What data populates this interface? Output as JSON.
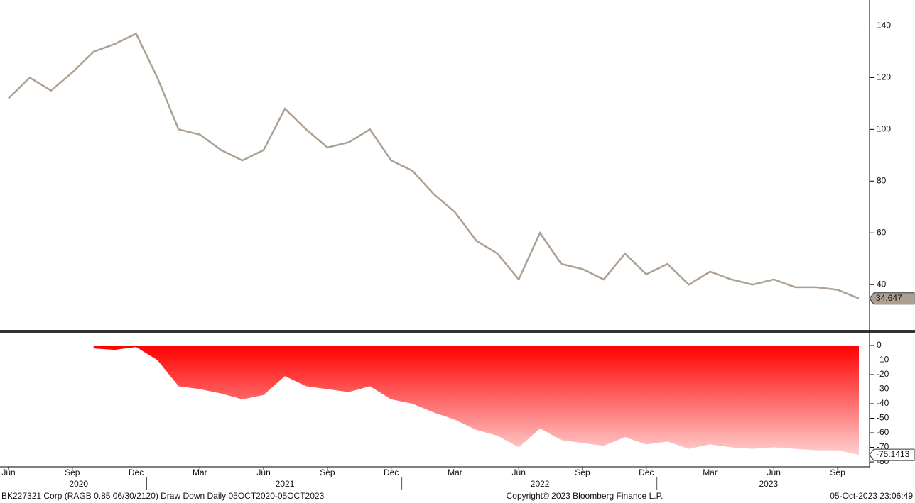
{
  "chart_data": [
    {
      "type": "line",
      "x": [
        "2020-06",
        "2020-07",
        "2020-08",
        "2020-09",
        "2020-10",
        "2020-11",
        "2020-12",
        "2021-01",
        "2021-02",
        "2021-03",
        "2021-04",
        "2021-05",
        "2021-06",
        "2021-07",
        "2021-08",
        "2021-09",
        "2021-10",
        "2021-11",
        "2021-12",
        "2022-01",
        "2022-02",
        "2022-03",
        "2022-04",
        "2022-05",
        "2022-06",
        "2022-07",
        "2022-08",
        "2022-09",
        "2022-10",
        "2022-11",
        "2022-12",
        "2023-01",
        "2023-02",
        "2023-03",
        "2023-04",
        "2023-05",
        "2023-06",
        "2023-07",
        "2023-08",
        "2023-09",
        "2023-10"
      ],
      "series": [
        {
          "color": "#ada092",
          "values": [
            112,
            120,
            115,
            122,
            130,
            133,
            137,
            120,
            100,
            98,
            92,
            88,
            92,
            108,
            100,
            93,
            95,
            100,
            88,
            84,
            75,
            68,
            57,
            52,
            42,
            60,
            48,
            46,
            42,
            52,
            44,
            48,
            40,
            45,
            42,
            40,
            42,
            39,
            39,
            38,
            34.647
          ]
        }
      ],
      "xlim": [
        "2020-06",
        "2023-10"
      ],
      "ylim": [
        22.5,
        150
      ],
      "yticks": [
        40,
        60,
        80,
        100,
        120,
        140
      ]
    },
    {
      "type": "area",
      "x": [
        "2020-06",
        "2020-07",
        "2020-08",
        "2020-09",
        "2020-10",
        "2020-11",
        "2020-12",
        "2021-01",
        "2021-02",
        "2021-03",
        "2021-04",
        "2021-05",
        "2021-06",
        "2021-07",
        "2021-08",
        "2021-09",
        "2021-10",
        "2021-11",
        "2021-12",
        "2022-01",
        "2022-02",
        "2022-03",
        "2022-04",
        "2022-05",
        "2022-06",
        "2022-07",
        "2022-08",
        "2022-09",
        "2022-10",
        "2022-11",
        "2022-12",
        "2023-01",
        "2023-02",
        "2023-03",
        "2023-04",
        "2023-05",
        "2023-06",
        "2023-07",
        "2023-08",
        "2023-09",
        "2023-10"
      ],
      "series": [
        {
          "color": "#ff0000",
          "values": [
            null,
            null,
            null,
            null,
            -2,
            -3,
            -1,
            -10,
            -28,
            -30,
            -33,
            -37,
            -34,
            -21,
            -28,
            -30,
            -32,
            -28,
            -37,
            -40,
            -46,
            -51,
            -58,
            -62,
            -70,
            -57,
            -65,
            -67,
            -69,
            -63,
            -68,
            -66,
            -71,
            -68,
            -70,
            -71,
            -70,
            -71,
            -72,
            -72,
            -75.1413
          ]
        }
      ],
      "xlim": [
        "2020-06",
        "2023-10"
      ],
      "ylim": [
        -83.4,
        8.3
      ],
      "yticks": [
        0,
        -10,
        -20,
        -30,
        -40,
        -50,
        -60,
        -70,
        -80
      ],
      "xticks": [
        {
          "value": "2020-06",
          "label": "Jun"
        },
        {
          "value": "2020-09",
          "label": "Sep"
        },
        {
          "value": "2020-12",
          "label": "Dec"
        },
        {
          "value": "2021-03",
          "label": "Mar"
        },
        {
          "value": "2021-06",
          "label": "Jun"
        },
        {
          "value": "2021-09",
          "label": "Sep"
        },
        {
          "value": "2021-12",
          "label": "Dec"
        },
        {
          "value": "2022-03",
          "label": "Mar"
        },
        {
          "value": "2022-06",
          "label": "Jun"
        },
        {
          "value": "2022-09",
          "label": "Sep"
        },
        {
          "value": "2022-12",
          "label": "Dec"
        },
        {
          "value": "2023-03",
          "label": "Mar"
        },
        {
          "value": "2023-06",
          "label": "Jun"
        },
        {
          "value": "2023-09",
          "label": "Sep"
        }
      ],
      "years": [
        "2020",
        "2021",
        "2022",
        "2023"
      ]
    }
  ],
  "footer": {
    "left": "BK227321 Corp (RAGB 0.85 06/30/2120) Draw Down  Daily 05OCT2020-05OCT2023",
    "center": "Copyright© 2023 Bloomberg Finance L.P.",
    "right": "05-Oct-2023 23:06:49"
  }
}
